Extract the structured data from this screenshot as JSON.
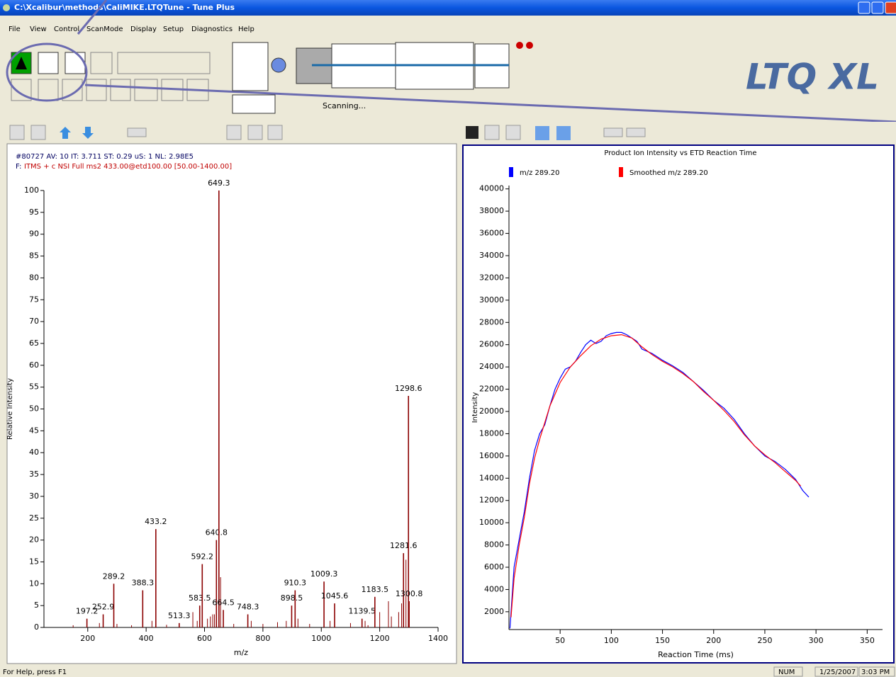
{
  "window": {
    "title": "C:\\Xcalibur\\methods\\CaliMIKE.LTQTune - Tune Plus"
  },
  "menu": [
    "File",
    "View",
    "Control",
    "ScanMode",
    "Display",
    "Setup",
    "Diagnostics",
    "Help"
  ],
  "instrument": {
    "status": "Scanning...",
    "logo": "LTQ XL"
  },
  "spectrum_header": {
    "line1": "#80727  AV: 10  IT: 3.711  ST: 0.29  uS: 1  NL: 2.98E5",
    "filter_prefix": "F:",
    "filter": "ITMS + c NSI Full ms2 433.00@etd100.00 [50.00-1400.00]"
  },
  "status_bar": {
    "help": "For Help, press F1",
    "num": "NUM",
    "date": "1/25/2007",
    "time": "3:03 PM"
  },
  "chart_data": [
    {
      "type": "spectrum",
      "x_label": "m/z",
      "y_label": "Relative Intensity",
      "color": "#8b0000",
      "peaks": {
        "x": [
          197.2,
          252.9,
          289.2,
          388.3,
          433.2,
          513.3,
          583.5,
          592.2,
          640.8,
          649.3,
          664.5,
          748.3,
          898.5,
          910.3,
          1009.3,
          1045.6,
          1139.5,
          1183.5,
          1281.6,
          1298.6,
          1300.8
        ],
        "values": [
          2,
          3,
          10,
          8.5,
          22.5,
          1,
          5,
          14.5,
          20,
          100,
          4,
          3,
          5,
          8.5,
          10.5,
          5.5,
          2,
          7,
          17,
          53,
          6
        ]
      },
      "minor_peaks": {
        "x": [
          150,
          240,
          300,
          350,
          420,
          470,
          560,
          575,
          610,
          620,
          628,
          634,
          655,
          700,
          760,
          800,
          850,
          880,
          920,
          960,
          1030,
          1100,
          1150,
          1160,
          1200,
          1230,
          1240,
          1265,
          1275,
          1290
        ],
        "values": [
          0.5,
          1,
          0.8,
          0.5,
          1.5,
          0.6,
          3.5,
          1.5,
          2,
          2.5,
          3,
          3,
          11.5,
          0.8,
          1.5,
          0.8,
          1.2,
          1.5,
          2,
          0.8,
          1.5,
          1,
          1.5,
          0.5,
          3.5,
          6,
          2.5,
          3.5,
          5.5,
          15.5
        ]
      },
      "xlim": [
        50,
        1400
      ],
      "ylim": [
        0,
        100
      ],
      "xticks": [
        200,
        400,
        600,
        800,
        1000,
        1200,
        1400
      ],
      "yticks": [
        0,
        5,
        10,
        15,
        20,
        25,
        30,
        35,
        40,
        45,
        50,
        55,
        60,
        65,
        70,
        75,
        80,
        85,
        90,
        95,
        100
      ]
    },
    {
      "type": "line",
      "title": "Product Ion Intensity vs ETD Reaction Time",
      "x_label": "Reaction Time (ms)",
      "y_label": "Intensity",
      "series": [
        {
          "name": "m/z 289.20",
          "color": "#0000ff",
          "x": [
            1,
            5,
            10,
            15,
            20,
            25,
            30,
            35,
            40,
            45,
            50,
            55,
            60,
            65,
            70,
            75,
            80,
            85,
            90,
            95,
            100,
            105,
            110,
            115,
            120,
            125,
            130,
            135,
            140,
            145,
            150,
            160,
            170,
            180,
            190,
            200,
            210,
            220,
            230,
            240,
            250,
            260,
            270,
            280,
            287,
            293
          ],
          "values": [
            500,
            6000,
            8500,
            11000,
            14000,
            16500,
            18000,
            18800,
            20500,
            22000,
            23000,
            23800,
            24000,
            24500,
            25300,
            26000,
            26400,
            26100,
            26300,
            26800,
            27000,
            27100,
            27100,
            26900,
            26600,
            26300,
            25600,
            25400,
            25200,
            24900,
            24600,
            24100,
            23500,
            22700,
            21900,
            21000,
            20300,
            19300,
            18000,
            16900,
            16000,
            15500,
            14800,
            13900,
            12900,
            12300
          ]
        },
        {
          "name": "Smoothed m/z 289.20",
          "color": "#ff0000",
          "x": [
            2,
            5,
            10,
            15,
            20,
            25,
            30,
            40,
            50,
            60,
            70,
            80,
            90,
            100,
            110,
            120,
            130,
            140,
            150,
            160,
            170,
            180,
            190,
            200,
            210,
            220,
            230,
            240,
            250,
            260,
            270,
            280,
            285
          ],
          "values": [
            1500,
            5000,
            8000,
            10500,
            13500,
            15800,
            17500,
            20500,
            22600,
            24000,
            25000,
            25900,
            26500,
            26800,
            26900,
            26600,
            25800,
            25100,
            24500,
            24000,
            23400,
            22700,
            21800,
            21000,
            20100,
            19100,
            17900,
            16900,
            16100,
            15400,
            14600,
            13800,
            13300
          ]
        }
      ],
      "xlim": [
        0,
        365
      ],
      "ylim": [
        400,
        40300
      ],
      "xticks": [
        50,
        100,
        150,
        200,
        250,
        300,
        350
      ],
      "yticks": [
        2000,
        4000,
        6000,
        8000,
        10000,
        12000,
        14000,
        16000,
        18000,
        20000,
        22000,
        24000,
        26000,
        28000,
        30000,
        32000,
        34000,
        36000,
        38000,
        40000
      ]
    }
  ]
}
